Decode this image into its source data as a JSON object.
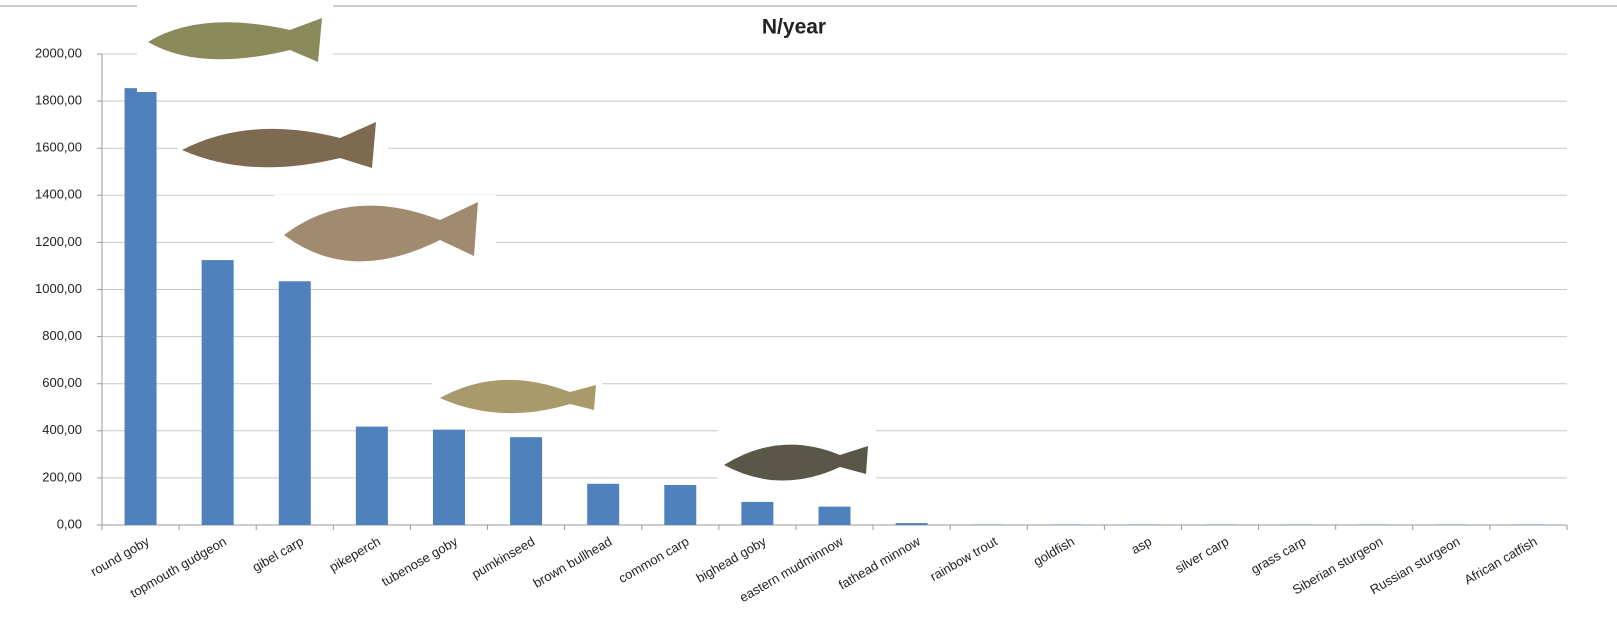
{
  "chart_data": {
    "type": "bar",
    "title": "N/year",
    "categories": [
      "round goby",
      "topmouth gudgeon",
      "gibel carp",
      "pikeperch",
      "tubenose goby",
      "pumkinseed",
      "brown bullhead",
      "common carp",
      "bighead goby",
      "eastern mudminnow",
      "fathead minnow",
      "rainbow trout",
      "goldfish",
      "asp",
      "silver carp",
      "grass carp",
      "Siberian sturgeon",
      "Russian sturgeon",
      "African catfish"
    ],
    "values": [
      1855,
      1125,
      1035,
      418,
      405,
      373,
      175,
      170,
      98,
      78,
      8,
      2,
      2,
      2,
      2,
      2,
      2,
      2,
      2
    ],
    "color": "#4f81bd",
    "ylim": [
      0,
      2000
    ],
    "yticks": [
      {
        "value": 0,
        "label": "0,00"
      },
      {
        "value": 200,
        "label": "200,00"
      },
      {
        "value": 400,
        "label": "400,00"
      },
      {
        "value": 600,
        "label": "600,00"
      },
      {
        "value": 800,
        "label": "800,00"
      },
      {
        "value": 1000,
        "label": "1000,00"
      },
      {
        "value": 1200,
        "label": "1200,00"
      },
      {
        "value": 1400,
        "label": "1400,00"
      },
      {
        "value": 1600,
        "label": "1600,00"
      },
      {
        "value": 1800,
        "label": "1800,00"
      },
      {
        "value": 2000,
        "label": "2000,00"
      }
    ],
    "grid": true
  }
}
